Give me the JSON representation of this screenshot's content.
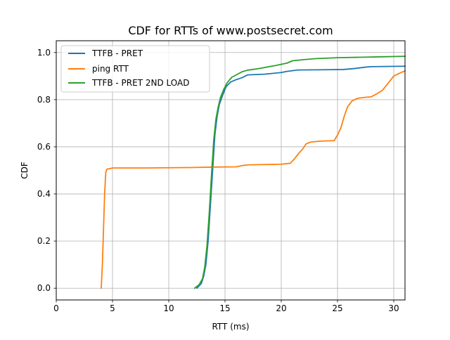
{
  "chart_data": {
    "type": "line",
    "title": "CDF for RTTs of www.postsecret.com",
    "xlabel": "RTT (ms)",
    "ylabel": "CDF",
    "xlim": [
      0,
      31
    ],
    "ylim": [
      -0.05,
      1.05
    ],
    "xticks": [
      0,
      5,
      10,
      15,
      20,
      25,
      30
    ],
    "yticks": [
      0.0,
      0.2,
      0.4,
      0.6,
      0.8,
      1.0
    ],
    "xtick_labels": [
      "0",
      "5",
      "10",
      "15",
      "20",
      "25",
      "30"
    ],
    "ytick_labels": [
      "0.0",
      "0.2",
      "0.4",
      "0.6",
      "0.8",
      "1.0"
    ],
    "grid": true,
    "legend_position": "top-left",
    "series": [
      {
        "name": "TTFB - PRET",
        "color": "#1f77b4",
        "points": [
          [
            12.5,
            0.0
          ],
          [
            12.9,
            0.02
          ],
          [
            13.1,
            0.05
          ],
          [
            13.3,
            0.1
          ],
          [
            13.5,
            0.2
          ],
          [
            13.7,
            0.35
          ],
          [
            13.9,
            0.5
          ],
          [
            14.1,
            0.65
          ],
          [
            14.3,
            0.73
          ],
          [
            14.5,
            0.78
          ],
          [
            14.8,
            0.82
          ],
          [
            15.1,
            0.855
          ],
          [
            15.5,
            0.875
          ],
          [
            16.0,
            0.885
          ],
          [
            16.5,
            0.893
          ],
          [
            17.0,
            0.905
          ],
          [
            18.5,
            0.908
          ],
          [
            20.0,
            0.915
          ],
          [
            20.5,
            0.92
          ],
          [
            21.5,
            0.926
          ],
          [
            24.0,
            0.927
          ],
          [
            25.5,
            0.928
          ],
          [
            26.5,
            0.932
          ],
          [
            27.5,
            0.938
          ],
          [
            28.0,
            0.94
          ],
          [
            31.0,
            0.942
          ]
        ]
      },
      {
        "name": "ping RTT",
        "color": "#ff7f0e",
        "points": [
          [
            4.0,
            0.0
          ],
          [
            4.1,
            0.1
          ],
          [
            4.2,
            0.25
          ],
          [
            4.3,
            0.4
          ],
          [
            4.4,
            0.49
          ],
          [
            4.5,
            0.505
          ],
          [
            4.8,
            0.508
          ],
          [
            5.0,
            0.51
          ],
          [
            8.0,
            0.51
          ],
          [
            12.0,
            0.512
          ],
          [
            14.0,
            0.514
          ],
          [
            16.0,
            0.515
          ],
          [
            16.5,
            0.52
          ],
          [
            17.0,
            0.523
          ],
          [
            20.0,
            0.526
          ],
          [
            20.8,
            0.53
          ],
          [
            21.2,
            0.55
          ],
          [
            21.6,
            0.575
          ],
          [
            21.9,
            0.59
          ],
          [
            22.2,
            0.612
          ],
          [
            22.6,
            0.62
          ],
          [
            23.5,
            0.624
          ],
          [
            24.7,
            0.626
          ],
          [
            25.0,
            0.65
          ],
          [
            25.3,
            0.68
          ],
          [
            25.6,
            0.73
          ],
          [
            25.9,
            0.77
          ],
          [
            26.3,
            0.795
          ],
          [
            26.8,
            0.806
          ],
          [
            27.5,
            0.81
          ],
          [
            28.0,
            0.812
          ],
          [
            28.5,
            0.825
          ],
          [
            29.0,
            0.84
          ],
          [
            29.5,
            0.87
          ],
          [
            30.0,
            0.9
          ],
          [
            30.5,
            0.912
          ],
          [
            31.0,
            0.922
          ]
        ]
      },
      {
        "name": "TTFB - PRET 2ND LOAD",
        "color": "#2ca02c",
        "points": [
          [
            12.3,
            0.0
          ],
          [
            12.7,
            0.015
          ],
          [
            13.0,
            0.04
          ],
          [
            13.2,
            0.09
          ],
          [
            13.4,
            0.18
          ],
          [
            13.6,
            0.32
          ],
          [
            13.8,
            0.48
          ],
          [
            14.0,
            0.63
          ],
          [
            14.2,
            0.72
          ],
          [
            14.4,
            0.77
          ],
          [
            14.6,
            0.81
          ],
          [
            14.9,
            0.845
          ],
          [
            15.2,
            0.872
          ],
          [
            15.6,
            0.895
          ],
          [
            16.0,
            0.905
          ],
          [
            16.5,
            0.918
          ],
          [
            17.0,
            0.925
          ],
          [
            18.0,
            0.932
          ],
          [
            19.5,
            0.945
          ],
          [
            20.5,
            0.955
          ],
          [
            21.0,
            0.965
          ],
          [
            22.0,
            0.97
          ],
          [
            23.0,
            0.974
          ],
          [
            25.0,
            0.978
          ],
          [
            27.0,
            0.98
          ],
          [
            29.0,
            0.982
          ],
          [
            31.0,
            0.984
          ]
        ]
      }
    ]
  }
}
